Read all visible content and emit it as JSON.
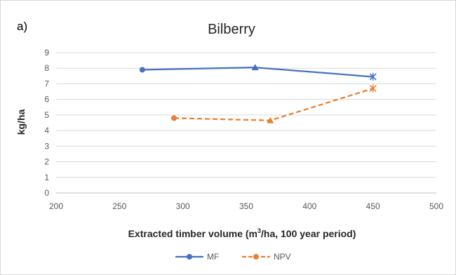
{
  "panel_label": "a)",
  "chart_data": {
    "type": "line",
    "title": "Bilberry",
    "xlabel_main": "Extracted timber volume (m",
    "xlabel_sup": "3",
    "xlabel_tail": "/ha, 100 year period)",
    "ylabel": "kg/ha",
    "xlim": [
      200,
      500
    ],
    "ylim": [
      0,
      9
    ],
    "x_ticks": [
      "200",
      "250",
      "300",
      "350",
      "400",
      "450",
      "500"
    ],
    "y_ticks": [
      "0",
      "1",
      "2",
      "3",
      "4",
      "5",
      "6",
      "7",
      "8",
      "9"
    ],
    "grid": true,
    "legend_position": "bottom",
    "series": [
      {
        "name": "MF",
        "color": "#4472c4",
        "dash": "solid",
        "points": [
          {
            "x": 268,
            "y": 7.9,
            "marker": "circle"
          },
          {
            "x": 357,
            "y": 8.05,
            "marker": "triangle"
          },
          {
            "x": 450,
            "y": 7.45,
            "marker": "star"
          }
        ]
      },
      {
        "name": "NPV",
        "color": "#ed7d31",
        "dash": "dashed",
        "points": [
          {
            "x": 293,
            "y": 4.8,
            "marker": "circle"
          },
          {
            "x": 369,
            "y": 4.65,
            "marker": "triangle"
          },
          {
            "x": 450,
            "y": 6.7,
            "marker": "star"
          }
        ]
      }
    ]
  }
}
